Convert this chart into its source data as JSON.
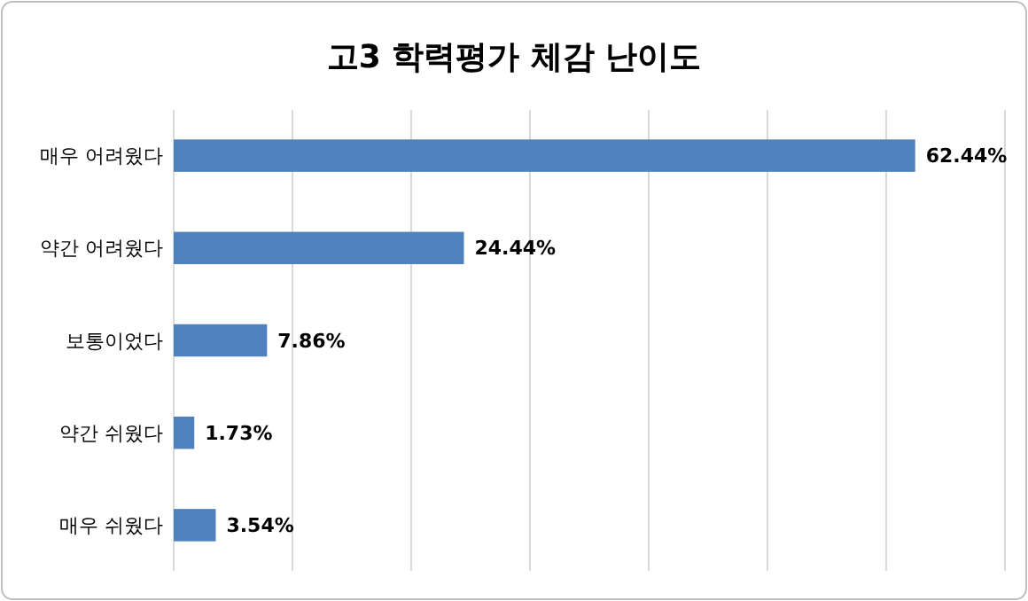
{
  "chart_data": {
    "type": "bar",
    "orientation": "horizontal",
    "title": "고3 학력평가 체감 난이도",
    "categories": [
      "매우 어려웠다",
      "약간 어려웠다",
      "보통이었다",
      "약간 쉬웠다",
      "매우 쉬웠다"
    ],
    "values": [
      62.44,
      24.44,
      7.86,
      1.73,
      3.54
    ],
    "value_labels": [
      "62.44%",
      "24.44%",
      "7.86%",
      "1.73%",
      "3.54%"
    ],
    "color": "#4f81bd",
    "xlim": [
      0,
      70
    ],
    "xticks": [
      {
        "value": 0,
        "label": null
      },
      {
        "value": 10,
        "label": null
      },
      {
        "value": 20,
        "label": null
      },
      {
        "value": 30,
        "label": null
      },
      {
        "value": 40,
        "label": null
      },
      {
        "value": 50,
        "label": null
      },
      {
        "value": 60,
        "label": null
      },
      {
        "value": 70,
        "label": null
      }
    ],
    "grid": "x",
    "tick_labels": "y"
  }
}
